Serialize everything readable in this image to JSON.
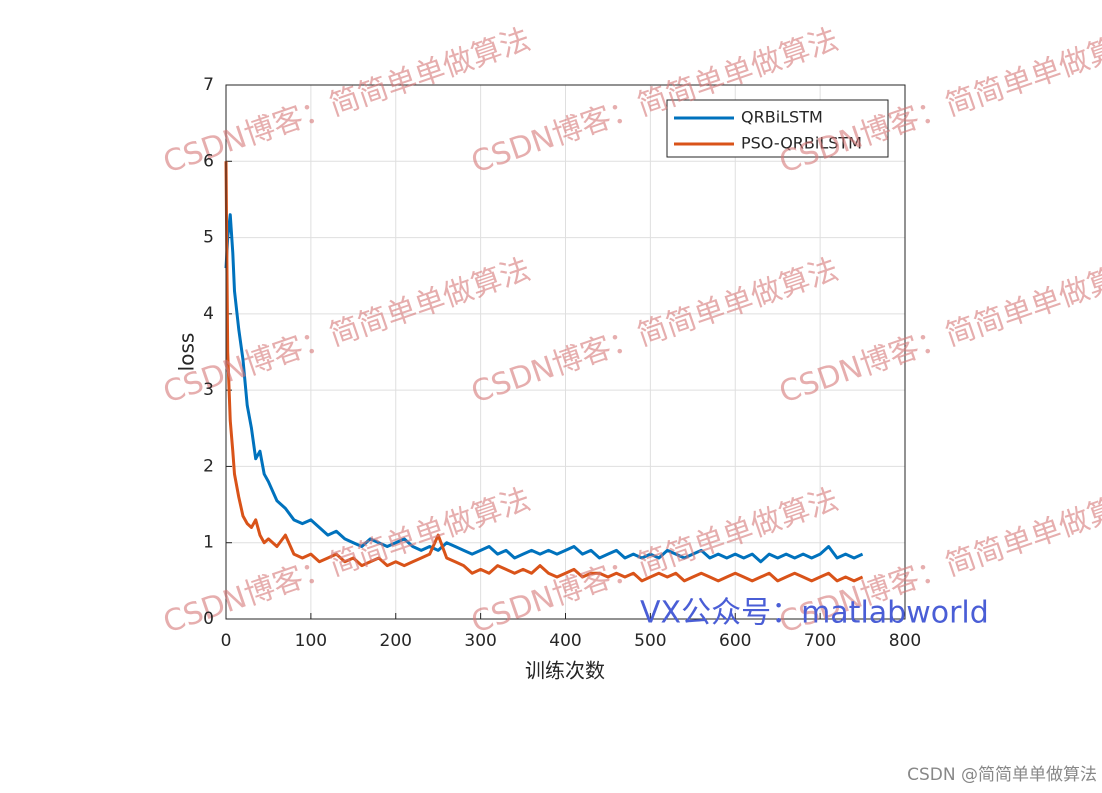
{
  "chart_data": {
    "type": "line",
    "xlabel": "训练次数",
    "ylabel": "loss",
    "x": [
      0,
      2,
      5,
      8,
      10,
      15,
      20,
      25,
      30,
      35,
      40,
      45,
      50,
      60,
      70,
      80,
      90,
      100,
      110,
      120,
      130,
      140,
      150,
      160,
      170,
      180,
      190,
      200,
      210,
      220,
      230,
      240,
      250,
      260,
      270,
      280,
      290,
      300,
      310,
      320,
      330,
      340,
      350,
      360,
      370,
      380,
      390,
      400,
      410,
      420,
      430,
      440,
      450,
      460,
      470,
      480,
      490,
      500,
      510,
      520,
      530,
      540,
      550,
      560,
      570,
      580,
      590,
      600,
      610,
      620,
      630,
      640,
      650,
      660,
      670,
      680,
      690,
      700,
      710,
      720,
      730,
      740,
      750
    ],
    "series": [
      {
        "name": "QRBiLSTM",
        "color": "#0072BD",
        "values": [
          4.6,
          5.0,
          5.3,
          4.8,
          4.3,
          3.8,
          3.4,
          2.8,
          2.5,
          2.1,
          2.2,
          1.9,
          1.8,
          1.55,
          1.45,
          1.3,
          1.25,
          1.3,
          1.2,
          1.1,
          1.15,
          1.05,
          1.0,
          0.95,
          1.05,
          1.0,
          0.95,
          1.0,
          1.05,
          0.95,
          0.9,
          0.95,
          0.9,
          1.0,
          0.95,
          0.9,
          0.85,
          0.9,
          0.95,
          0.85,
          0.9,
          0.8,
          0.85,
          0.9,
          0.85,
          0.9,
          0.85,
          0.9,
          0.95,
          0.85,
          0.9,
          0.8,
          0.85,
          0.9,
          0.8,
          0.85,
          0.8,
          0.85,
          0.8,
          0.9,
          0.85,
          0.8,
          0.85,
          0.9,
          0.8,
          0.85,
          0.8,
          0.85,
          0.8,
          0.85,
          0.75,
          0.85,
          0.8,
          0.85,
          0.8,
          0.85,
          0.8,
          0.85,
          0.95,
          0.8,
          0.85,
          0.8,
          0.85
        ]
      },
      {
        "name": "PSO-QRBiLSTM",
        "color": "#D95319",
        "values": [
          6.0,
          3.5,
          2.6,
          2.2,
          1.9,
          1.6,
          1.35,
          1.25,
          1.2,
          1.3,
          1.1,
          1.0,
          1.05,
          0.95,
          1.1,
          0.85,
          0.8,
          0.85,
          0.75,
          0.8,
          0.85,
          0.75,
          0.8,
          0.7,
          0.75,
          0.8,
          0.7,
          0.75,
          0.7,
          0.75,
          0.8,
          0.85,
          1.1,
          0.8,
          0.75,
          0.7,
          0.6,
          0.65,
          0.6,
          0.7,
          0.65,
          0.6,
          0.65,
          0.6,
          0.7,
          0.6,
          0.55,
          0.6,
          0.65,
          0.55,
          0.6,
          0.6,
          0.55,
          0.6,
          0.55,
          0.6,
          0.5,
          0.55,
          0.6,
          0.55,
          0.6,
          0.5,
          0.55,
          0.6,
          0.55,
          0.5,
          0.55,
          0.6,
          0.55,
          0.5,
          0.55,
          0.6,
          0.5,
          0.55,
          0.6,
          0.55,
          0.5,
          0.55,
          0.6,
          0.5,
          0.55,
          0.5,
          0.55
        ]
      }
    ],
    "xlim": [
      0,
      800
    ],
    "xticks": [
      0,
      100,
      200,
      300,
      400,
      500,
      600,
      700,
      800
    ],
    "ylim": [
      0,
      7
    ],
    "yticks": [
      0,
      1,
      2,
      3,
      4,
      5,
      6,
      7
    ],
    "grid": true,
    "legend": "northeast"
  },
  "watermark": "CSDN博客：简简单单做算法",
  "overlay_text": "VX公众号：matlabworld",
  "footer": "CSDN @简简单单做算法"
}
